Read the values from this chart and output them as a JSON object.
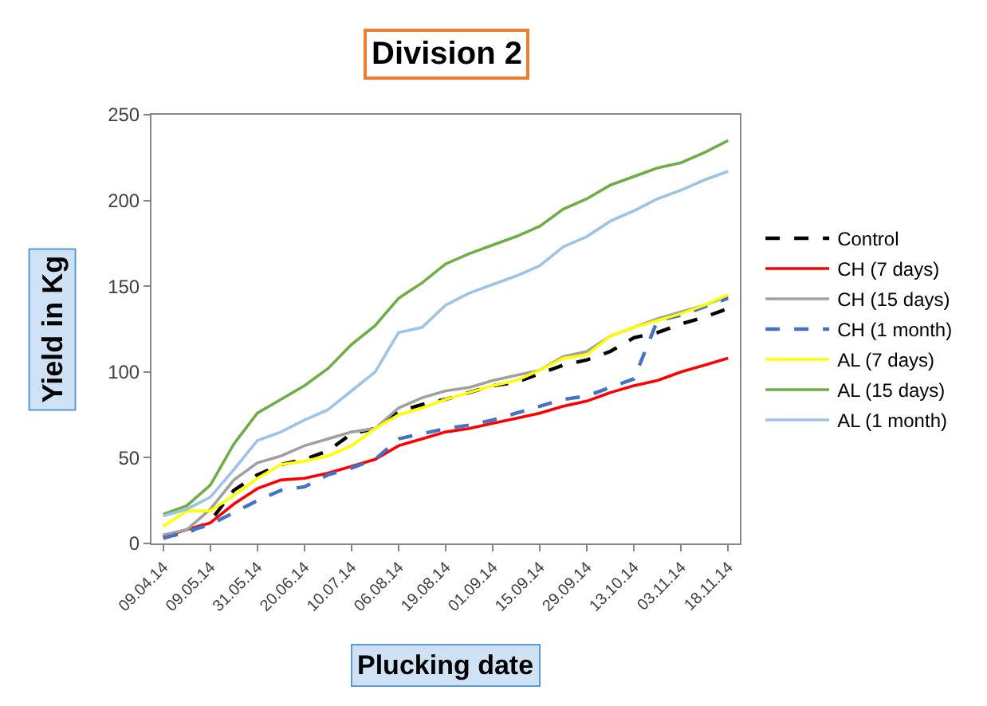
{
  "chart_data": {
    "type": "line",
    "title": "Division 2",
    "xlabel": "Plucking date",
    "ylabel": "Yield in Kg",
    "categories": [
      "09.04.14",
      null,
      "09.05.14",
      null,
      "31.05.14",
      null,
      "20.06.14",
      null,
      "10.07.14",
      null,
      "06.08.14",
      null,
      "19.08.14",
      null,
      "01.09.14",
      null,
      "15.09.14",
      null,
      "29.09.14",
      null,
      "13.10.14",
      null,
      "03.11.14",
      null,
      "18.11.14"
    ],
    "ylim": [
      0,
      250
    ],
    "yticks": [
      0,
      50,
      100,
      150,
      200,
      250
    ],
    "legend": "right",
    "marker": "none",
    "series": [
      {
        "name": "Control",
        "color": "#000000",
        "line_style": "dashed",
        "values": [
          4,
          6,
          13,
          31,
          40,
          46,
          49,
          54,
          64,
          67,
          77,
          81,
          84,
          88,
          92,
          94,
          99,
          104,
          107,
          112,
          120,
          123,
          128,
          132,
          137
        ]
      },
      {
        "name": "CH (7 days)",
        "color": "#ff0000",
        "line_style": "solid",
        "values": [
          4,
          8,
          12,
          23,
          32,
          37,
          38,
          41,
          45,
          49,
          57,
          61,
          65,
          67,
          70,
          73,
          76,
          80,
          83,
          88,
          92,
          95,
          100,
          104,
          108
        ]
      },
      {
        "name": "CH (15 days)",
        "color": "#a0a0a0",
        "line_style": "solid",
        "values": [
          5,
          8,
          20,
          37,
          47,
          51,
          57,
          61,
          65,
          67,
          79,
          85,
          89,
          91,
          95,
          98,
          101,
          109,
          112,
          121,
          126,
          131,
          135,
          139,
          144
        ]
      },
      {
        "name": "CH (1 month)",
        "color": "#4472c4",
        "line_style": "dashed",
        "values": [
          3,
          7,
          11,
          18,
          25,
          31,
          33,
          40,
          44,
          49,
          61,
          64,
          67,
          69,
          72,
          76,
          80,
          84,
          86,
          91,
          96,
          130,
          133,
          138,
          143
        ]
      },
      {
        "name": "AL (7 days)",
        "color": "#ffff00",
        "line_style": "solid",
        "values": [
          10,
          19,
          19,
          28,
          38,
          46,
          48,
          51,
          57,
          67,
          75,
          79,
          84,
          88,
          92,
          95,
          101,
          108,
          110,
          121,
          126,
          130,
          134,
          139,
          145
        ]
      },
      {
        "name": "AL (15 days)",
        "color": "#70ad47",
        "line_style": "solid",
        "values": [
          17,
          22,
          34,
          58,
          76,
          84,
          92,
          102,
          116,
          127,
          143,
          152,
          163,
          169,
          174,
          179,
          185,
          195,
          201,
          209,
          214,
          219,
          222,
          228,
          235
        ]
      },
      {
        "name": "AL (1 month)",
        "color": "#9dc3e6",
        "line_style": "solid",
        "values": [
          16,
          20,
          27,
          43,
          60,
          65,
          72,
          78,
          89,
          100,
          123,
          126,
          139,
          146,
          151,
          156,
          162,
          173,
          179,
          188,
          194,
          201,
          206,
          212,
          217
        ]
      }
    ]
  }
}
